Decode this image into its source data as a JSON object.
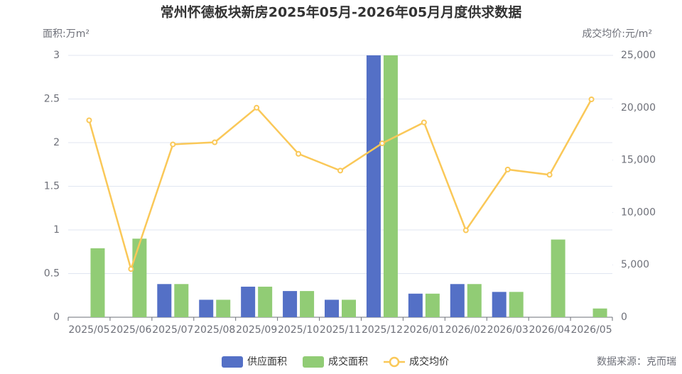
{
  "chart_data": {
    "type": "bar",
    "title": "常州怀德板块新房2025年05月-2026年05月月度供求数据",
    "y_label": "面积:万m²",
    "y2_label": "成交均价:元/m²",
    "source": "数据来源：克而瑞",
    "categories": [
      "2025/05",
      "2025/06",
      "2025/07",
      "2025/08",
      "2025/09",
      "2025/10",
      "2025/11",
      "2025/12",
      "2026/01",
      "2026/02",
      "2026/03",
      "2026/04",
      "2026/05"
    ],
    "series": [
      {
        "name": "供应面积",
        "type": "bar",
        "color": "#5470c6",
        "values": [
          0,
          0,
          0.38,
          0.2,
          0.35,
          0.3,
          0.2,
          3,
          0.27,
          0.38,
          0.29,
          0,
          0
        ]
      },
      {
        "name": "成交面积",
        "type": "bar",
        "color": "#91cc75",
        "values": [
          0.79,
          0.9,
          0.38,
          0.2,
          0.35,
          0.3,
          0.2,
          3,
          0.27,
          0.38,
          0.29,
          0.89,
          0.1
        ]
      },
      {
        "name": "成交均价",
        "type": "line",
        "axis": "y2",
        "color": "#fac858",
        "values": [
          18800,
          4600,
          16500,
          16700,
          20000,
          15600,
          14000,
          16600,
          18600,
          8300,
          14100,
          13600,
          20800
        ]
      }
    ],
    "ylim": [
      0,
      3
    ],
    "yticks": [
      0,
      0.5,
      1,
      1.5,
      2,
      2.5,
      3
    ],
    "y2lim": [
      0,
      25000
    ],
    "y2ticks": [
      0,
      {
        "value": 5000,
        "label": "5,000"
      },
      {
        "value": 10000,
        "label": "10,000"
      },
      {
        "value": 15000,
        "label": "15,000"
      },
      {
        "value": 20000,
        "label": "20,000"
      },
      {
        "value": 25000,
        "label": "25,000"
      }
    ],
    "grid": true
  }
}
